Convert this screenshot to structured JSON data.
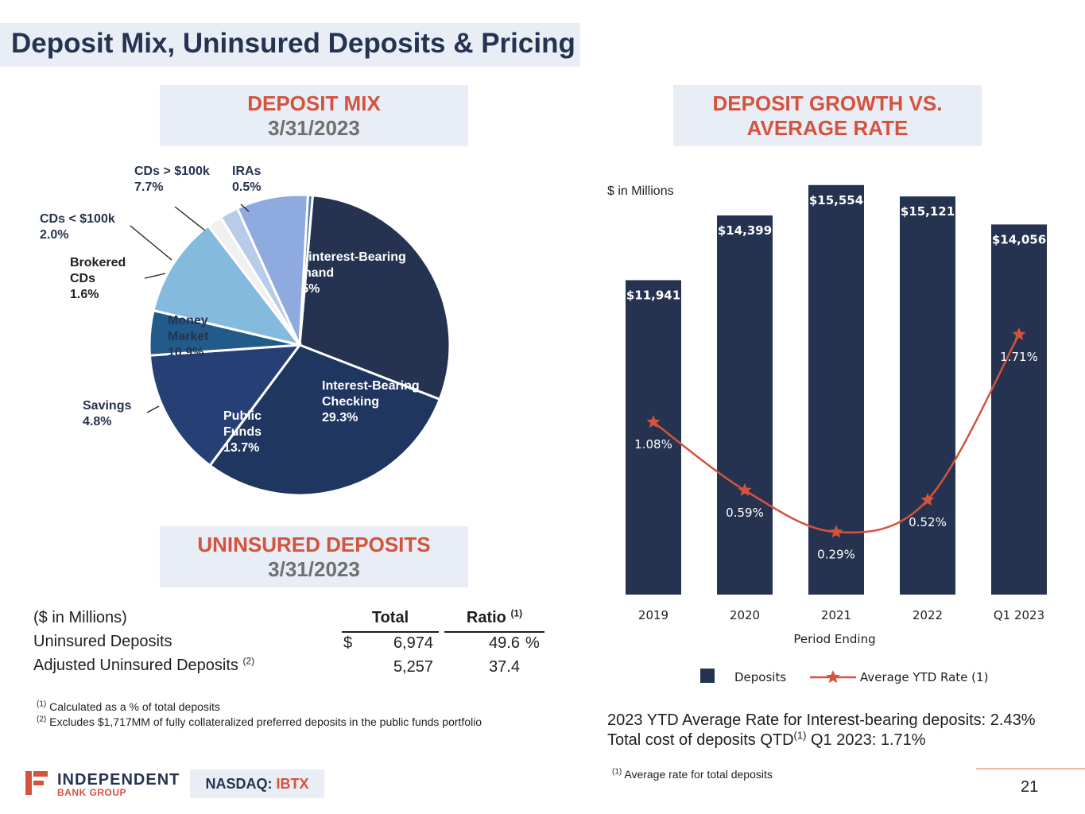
{
  "page": {
    "title": "Deposit Mix, Uninsured Deposits & Pricing",
    "page_number": "21",
    "logo_name": "INDEPENDENT",
    "logo_sub": "BANK GROUP",
    "ticker_label": "NASDAQ: ",
    "ticker": "IBTX"
  },
  "deposit_mix": {
    "header_line1": "DEPOSIT MIX",
    "header_line2": "3/31/2023"
  },
  "uninsured": {
    "header_line1": "UNINSURED DEPOSITS",
    "header_line2": "3/31/2023",
    "units_label": "($ in Millions)",
    "col_total": "Total",
    "col_ratio": "Ratio",
    "col_ratio_note": "(1)",
    "rows": [
      {
        "label": "Uninsured Deposits",
        "note": "",
        "currency": "$",
        "total": "6,974",
        "ratio": "49.6",
        "pct": "%"
      },
      {
        "label": "Adjusted Uninsured Deposits",
        "note": "(2)",
        "currency": "",
        "total": "5,257",
        "ratio": "37.4",
        "pct": ""
      }
    ],
    "footnotes": [
      {
        "mark": "(1)",
        "text": "Calculated as a % of total deposits"
      },
      {
        "mark": "(2)",
        "text": "Excludes $1,717MM of fully collateralized preferred deposits in the public funds portfolio"
      }
    ]
  },
  "growth": {
    "header_line1": "DEPOSIT GROWTH VS.",
    "header_line2": "AVERAGE RATE",
    "units_label": "$ in Millions",
    "summary_line1": "2023 YTD Average Rate for Interest-bearing deposits:  2.43%",
    "summary_line2_a": "Total cost of deposits QTD",
    "summary_line2_note": "(1)",
    "summary_line2_b": " Q1 2023: 1.71%",
    "footnote_mark": "(1)",
    "footnote": "Average rate for total deposits"
  },
  "colors": {
    "navy": "#253351",
    "red": "#d4533d",
    "header_bg": "#e9edf5"
  },
  "chart_data": [
    {
      "type": "pie",
      "title": "DEPOSIT MIX 3/31/2023",
      "slices": [
        {
          "name": "Noninterest-Bearing Demand",
          "label_lines": [
            "Noninterest-Bearing",
            "Demand",
            "29.5%"
          ],
          "value": 29.5,
          "color": "#253351",
          "label_inside": true
        },
        {
          "name": "Interest-Bearing Checking",
          "label_lines": [
            "Interest-Bearing",
            "Checking",
            "29.3%"
          ],
          "value": 29.3,
          "color": "#1f3660",
          "label_inside": true
        },
        {
          "name": "Public Funds",
          "label_lines": [
            "Public",
            "Funds",
            "13.7%"
          ],
          "value": 13.7,
          "color": "#263f74",
          "label_inside": true
        },
        {
          "name": "Savings",
          "label_lines": [
            "Savings",
            "4.8%"
          ],
          "value": 4.8,
          "color": "#225a8a",
          "label_inside": false
        },
        {
          "name": "Money Market",
          "label_lines": [
            "Money",
            "Market",
            "10.9%"
          ],
          "value": 10.9,
          "color": "#85badf",
          "label_inside": true
        },
        {
          "name": "Brokered CDs",
          "label_lines": [
            "Brokered",
            "CDs",
            "1.6%"
          ],
          "value": 1.6,
          "color": "#f0f0f0",
          "label_inside": false
        },
        {
          "name": "CDs < $100k",
          "label_lines": [
            "CDs < $100k",
            "2.0%"
          ],
          "value": 2.0,
          "color": "#b8cbe8",
          "label_inside": false
        },
        {
          "name": "CDs > $100k",
          "label_lines": [
            "CDs > $100k",
            "7.7%"
          ],
          "value": 7.7,
          "color": "#8eaade",
          "label_inside": false
        },
        {
          "name": "IRAs",
          "label_lines": [
            "IRAs",
            "0.5%"
          ],
          "value": 0.5,
          "color": "#4d7fa8",
          "label_inside": false
        }
      ]
    },
    {
      "type": "bar",
      "title": "DEPOSIT GROWTH VS. AVERAGE RATE",
      "xlabel": "Period Ending",
      "ylabel": "$ in Millions",
      "categories": [
        "2019",
        "2020",
        "2021",
        "2022",
        "Q1 2023"
      ],
      "series": [
        {
          "name": "Deposits",
          "type": "bar",
          "values": [
            11941,
            14399,
            15554,
            15121,
            14056
          ],
          "labels": [
            "$11,941",
            "$14,399",
            "$15,554",
            "$15,121",
            "$14,056"
          ],
          "color": "#253351"
        },
        {
          "name": "Average YTD Rate (1)",
          "type": "line",
          "values": [
            1.08,
            0.59,
            0.29,
            0.52,
            1.71
          ],
          "labels": [
            "1.08%",
            "0.59%",
            "0.29%",
            "0.52%",
            "1.71%"
          ],
          "color": "#d4533d",
          "marker": "star"
        }
      ],
      "legend": "bottom"
    }
  ]
}
